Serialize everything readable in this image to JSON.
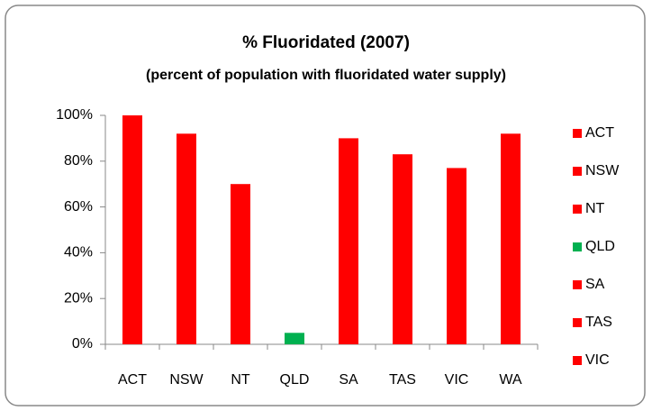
{
  "chart_data": {
    "type": "bar",
    "title": "% Fluoridated (2007)",
    "subtitle": "(percent of population with fluoridated water supply)",
    "categories": [
      "ACT",
      "NSW",
      "NT",
      "QLD",
      "SA",
      "TAS",
      "VIC",
      "WA"
    ],
    "values": [
      100,
      92,
      70,
      5,
      90,
      83,
      77,
      92
    ],
    "colors": [
      "#ff0000",
      "#ff0000",
      "#ff0000",
      "#00b050",
      "#ff0000",
      "#ff0000",
      "#ff0000",
      "#ff0000"
    ],
    "legend": [
      "ACT",
      "NSW",
      "NT",
      "QLD",
      "SA",
      "TAS",
      "VIC"
    ],
    "legend_position": "right",
    "ylim": [
      0,
      100
    ],
    "yticks": [
      {
        "value": 0,
        "label": "0%"
      },
      {
        "value": 20,
        "label": "20%"
      },
      {
        "value": 40,
        "label": "40%"
      },
      {
        "value": 60,
        "label": "60%"
      },
      {
        "value": 80,
        "label": "80%"
      },
      {
        "value": 100,
        "label": "100%"
      }
    ],
    "grid": false
  }
}
